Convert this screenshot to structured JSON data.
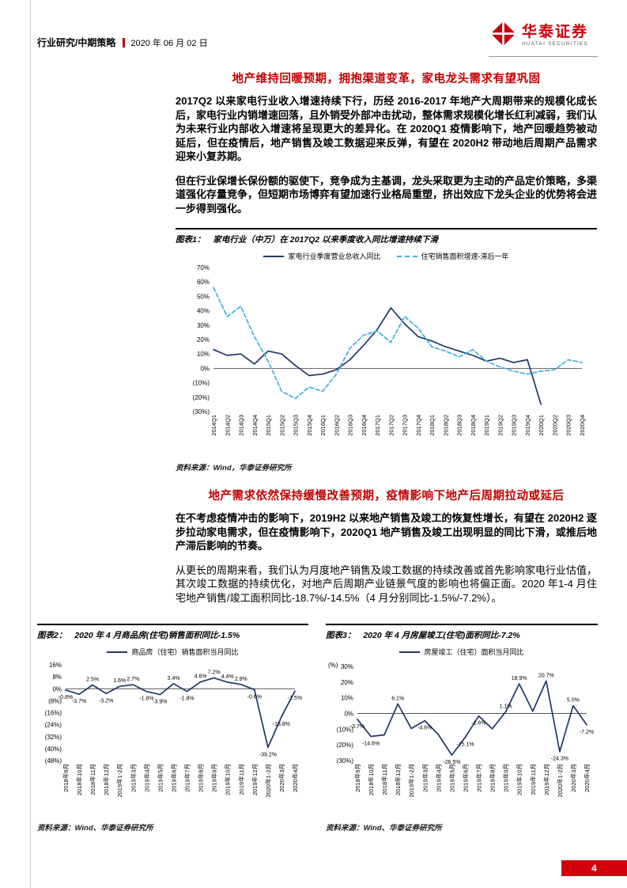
{
  "header": {
    "category": "行业研究/中期策略",
    "date": "2020 年 06 月 02 日",
    "brand_cn": "华泰证券",
    "brand_en": "HUATAI SECURITIES"
  },
  "section1": {
    "heading": "地产维持回暖预期，拥抱渠道变革，家电龙头需求有望巩固",
    "para1": "2017Q2 以来家电行业收入增速持续下行，历经 2016-2017 年地产大周期带来的规模化成长后，家电行业内销增速回落，且外销受外部冲击扰动，整体需求规模化增长红利减弱，我们认为未来行业内部收入增速将呈现更大的差异化。在 2020Q1 疫情影响下，地产回暖趋势被动延后，但在疫情后，地产销售及竣工数据迎来反弹，有望在 2020H2 带动地后周期产品需求迎来小复苏期。",
    "para2": "但在行业保增长保份额的驱使下，竞争成为主基调，龙头采取更为主动的产品定价策略，多渠道强化存量竞争，但短期市场博弈有望加速行业格局重塑，挤出效应下龙头企业的优势将会进一步得到强化。"
  },
  "figure1": {
    "label": "图表1：",
    "title": "家电行业（中万）在 2017Q2 以来季度收入同比增速持续下滑",
    "source": "资料来源：Wind，华泰证券研究所"
  },
  "section2": {
    "heading": "地产需求依然保持缓慢改善预期，疫情影响下地产后周期拉动或延后",
    "para1": "在不考虑疫情冲击的影响下，2019H2 以来地产销售及竣工的恢复性增长，有望在 2020H2 逐步拉动家电需求，但在疫情影响下，2020Q1 地产销售及竣工出现明显的同比下滑，或推后地产滞后影响的节奏。",
    "para2": "从更长的周期来看，我们认为月度地产销售及竣工数据的持续改善或首先影响家电行业估值，其次竣工数据的持续优化，对地产后周期产业链景气度的影响也将偏正面。2020 年1-4 月住宅地产销售/竣工面积同比-18.7%/-14.5%（4 月分别同比-1.5%/-7.2%）。"
  },
  "figure2": {
    "label": "图表2：",
    "title": "2020 年 4 月商品房(住宅)销售面积同比-1.5%",
    "source": "资料来源：Wind、华泰证券研究所"
  },
  "figure3": {
    "label": "图表3：",
    "title": "2020 年 4 月房屋竣工(住宅)面积同比-7.2%",
    "source": "资料来源：Wind、华泰证券研究所"
  },
  "footer": {
    "page_number": "4"
  },
  "chart_data": [
    {
      "type": "line",
      "title": "家电行业（中万）在 2017Q2 以来季度收入同比增速持续下滑",
      "categories": [
        "2014Q1",
        "2014Q2",
        "2014Q3",
        "2014Q4",
        "2015Q1",
        "2015Q2",
        "2015Q3",
        "2015Q4",
        "2016Q1",
        "2016Q2",
        "2016Q3",
        "2016Q4",
        "2017Q1",
        "2017Q2",
        "2017Q3",
        "2017Q4",
        "2018Q1",
        "2018Q2",
        "2018Q3",
        "2018Q4",
        "2019Q1",
        "2019Q2",
        "2019Q3",
        "2019Q4",
        "2020Q1",
        "2020Q2",
        "2020Q3",
        "2020Q4"
      ],
      "series": [
        {
          "name": "家电行业季度营业总收入同比",
          "color": "#1f3864",
          "dash": false,
          "values": [
            13,
            9,
            10,
            3,
            12,
            10,
            2,
            -5,
            -4,
            -1,
            6,
            16,
            27,
            42,
            31,
            22,
            19,
            15,
            12,
            9,
            5,
            7,
            4,
            6,
            -25,
            null,
            null,
            null
          ]
        },
        {
          "name": "住宅销售面积增速-滞后一年",
          "color": "#3fb0e4",
          "dash": true,
          "values": [
            56,
            36,
            43,
            22,
            5,
            -16,
            -21,
            -13,
            -16,
            -4,
            14,
            23,
            26,
            18,
            36,
            28,
            15,
            12,
            8,
            13,
            5,
            1,
            -2,
            -4,
            -2,
            -1,
            6,
            4
          ]
        }
      ],
      "ylim": [
        -30,
        70
      ],
      "yticks": [
        70,
        60,
        50,
        40,
        30,
        20,
        10,
        0,
        -10,
        -20,
        -30
      ],
      "legend_position": "top",
      "grid": false
    },
    {
      "type": "line",
      "title": "2020 年 4 月商品房(住宅)销售面积同比-1.5%",
      "legend": "商品房（住宅）销售面积当月同比",
      "color": "#1f3864",
      "categories": [
        "2018年9月",
        "2018年10月",
        "2018年11月",
        "2018年12月",
        "2019年1-2月",
        "2019年3月",
        "2019年4月",
        "2019年5月",
        "2019年6月",
        "2019年7月",
        "2019年8月",
        "2019年9月",
        "2019年10月",
        "2019年11月",
        "2019年12月",
        "2020年1-2月",
        "2020年3月",
        "2020年4月"
      ],
      "values": [
        -0.8,
        -3.7,
        2.5,
        -3.2,
        1.6,
        2.7,
        -1.8,
        -3.9,
        3.4,
        -1.8,
        4.6,
        7.2,
        4.4,
        2.9,
        -0.6,
        -39.2,
        -18.8,
        -1.5
      ],
      "labels": [
        "-0.8%",
        "-3.7%",
        "2.5%",
        "-3.2%",
        "1.6%",
        "2.7%",
        "-1.8%",
        "-3.9%",
        "3.4%",
        "-1.8%",
        "4.6%",
        "7.2%",
        "4.4%",
        "2.9%",
        "-0.6%",
        "-39.2%",
        "-18.8%",
        "-1.5%"
      ],
      "ylim": [
        -48,
        16
      ],
      "yticks": [
        16,
        8,
        0,
        -8,
        -16,
        -24,
        -32,
        -40,
        -48
      ],
      "legend_position": "top",
      "grid": false
    },
    {
      "type": "line",
      "title": "2020 年 4 月房屋竣工(住宅)面积同比-7.2%",
      "legend": "房屋竣工（住宅）面积当月同比",
      "unit": "(%)",
      "color": "#1f3864",
      "categories": [
        "2018年9月",
        "2018年10月",
        "2018年11月",
        "2018年12月",
        "2019年1-2月",
        "2019年3月",
        "2019年4月",
        "2019年5月",
        "2019年6月",
        "2019年7月",
        "2019年8月",
        "2019年9月",
        "2019年10月",
        "2019年11月",
        "2019年12月",
        "2020年1-2月",
        "2020年3月",
        "2020年4月"
      ],
      "values": [
        -3.7,
        -14.6,
        -13.6,
        6.1,
        -9.6,
        -4.6,
        -13.4,
        -26.5,
        -15.1,
        -1.6,
        -9.8,
        1.1,
        18.9,
        1.4,
        20.7,
        -24.3,
        5.0,
        -7.2
      ],
      "labels": [
        "-3.7%",
        "-14.6%",
        null,
        "6.1%",
        null,
        "-4.6%",
        null,
        "-26.5%",
        "-15.1%",
        "-1.6%",
        null,
        "1.1%",
        "18.9%",
        null,
        "20.7%",
        "-24.3%",
        "5.0%",
        "-7.2%"
      ],
      "ylim": [
        -30,
        30
      ],
      "yticks": [
        30,
        20,
        10,
        0,
        -10,
        -20,
        -30
      ],
      "legend_position": "top",
      "grid": false
    }
  ]
}
